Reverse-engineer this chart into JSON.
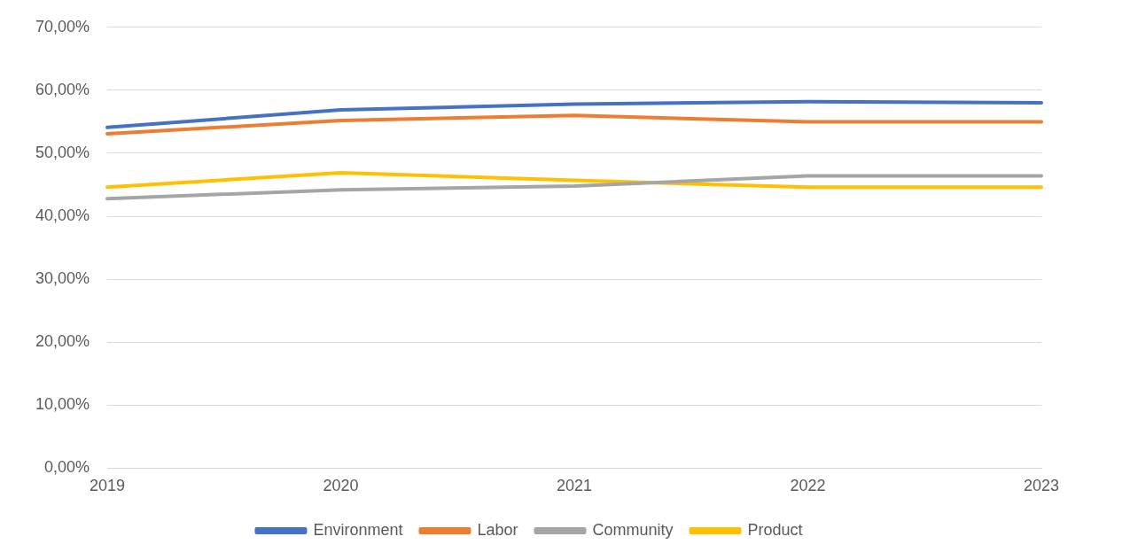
{
  "chart_data": {
    "type": "line",
    "categories": [
      "2019",
      "2020",
      "2021",
      "2022",
      "2023"
    ],
    "series": [
      {
        "name": "Environment",
        "color": "#4472c4",
        "values": [
          54.1,
          56.9,
          57.8,
          58.2,
          58.0
        ]
      },
      {
        "name": "Labor",
        "color": "#ed7d31",
        "values": [
          53.1,
          55.2,
          56.0,
          55.0,
          55.0
        ]
      },
      {
        "name": "Community",
        "color": "#a5a5a5",
        "values": [
          42.8,
          44.2,
          44.8,
          46.4,
          46.4
        ]
      },
      {
        "name": "Product",
        "color": "#ffc000",
        "values": [
          44.6,
          46.9,
          45.7,
          44.6,
          44.6
        ]
      }
    ],
    "ylim": [
      0,
      70
    ],
    "yticks": [
      {
        "value": 0,
        "label": "0,00%"
      },
      {
        "value": 10,
        "label": "10,00%"
      },
      {
        "value": 20,
        "label": "20,00%"
      },
      {
        "value": 30,
        "label": "30,00%"
      },
      {
        "value": 40,
        "label": "40,00%"
      },
      {
        "value": 50,
        "label": "50,00%"
      },
      {
        "value": 60,
        "label": "60,00%"
      },
      {
        "value": 70,
        "label": "70,00%"
      }
    ],
    "grid": "y",
    "legend": "bottom",
    "marker": "none",
    "line_style": "solid"
  }
}
